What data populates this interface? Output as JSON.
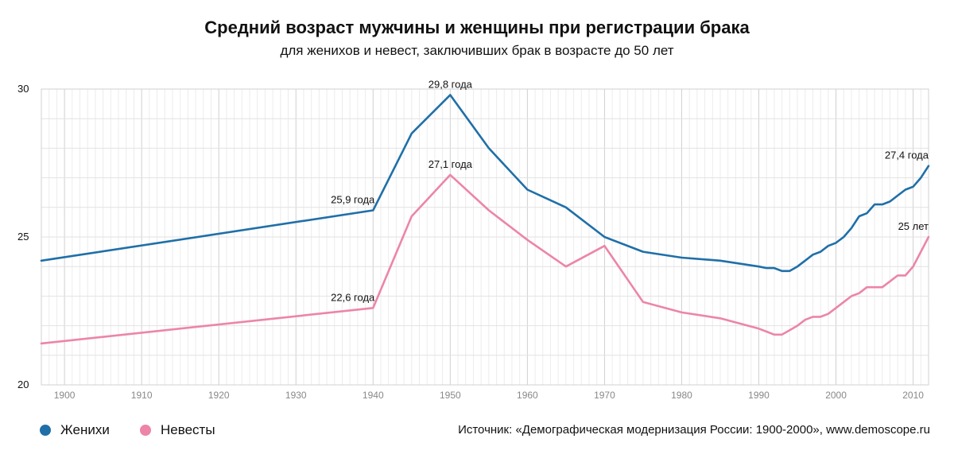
{
  "title": "Средний возраст мужчины и женщины при регистрации брака",
  "subtitle": "для женихов и невест, заключивших брак в возрасте до 50 лет",
  "source": "Источник: «Демографическая модернизация России: 1900-2000», www.demoscope.ru",
  "colors": {
    "grooms": "#1f6fa8",
    "brides": "#ec85a8",
    "grid": "#dcdcdc"
  },
  "chart_data": {
    "type": "line",
    "title": "Средний возраст мужчины и женщины при регистрации брака",
    "subtitle": "для женихов и невест, заключивших брак в возрасте до 50 лет",
    "xlabel": "",
    "ylabel": "",
    "xlim": [
      1897,
      2012
    ],
    "ylim": [
      20,
      30
    ],
    "x_ticks": [
      "1900",
      "1910",
      "1920",
      "1930",
      "1940",
      "1950",
      "1960",
      "1970",
      "1980",
      "1990",
      "2000",
      "2010"
    ],
    "y_ticks": [
      "20",
      "25",
      "30"
    ],
    "grid": true,
    "legend": "bottom-left",
    "series": [
      {
        "name": "Женихи",
        "color": "#1f6fa8",
        "x": [
          1897,
          1940,
          1945,
          1950,
          1955,
          1960,
          1965,
          1970,
          1975,
          1980,
          1985,
          1990,
          1991,
          1992,
          1993,
          1994,
          1995,
          1996,
          1997,
          1998,
          1999,
          2000,
          2001,
          2002,
          2003,
          2004,
          2005,
          2006,
          2007,
          2008,
          2009,
          2010,
          2011,
          2012
        ],
        "values": [
          24.2,
          25.9,
          28.5,
          29.8,
          28.0,
          26.6,
          26.0,
          25.0,
          24.5,
          24.3,
          24.2,
          24.0,
          23.95,
          23.95,
          23.85,
          23.85,
          24.0,
          24.2,
          24.4,
          24.5,
          24.7,
          24.8,
          25.0,
          25.3,
          25.7,
          25.8,
          26.1,
          26.1,
          26.2,
          26.4,
          26.6,
          26.7,
          27.0,
          27.4
        ]
      },
      {
        "name": "Невесты",
        "color": "#ec85a8",
        "x": [
          1897,
          1940,
          1945,
          1950,
          1955,
          1960,
          1965,
          1970,
          1975,
          1980,
          1985,
          1990,
          1991,
          1992,
          1993,
          1994,
          1995,
          1996,
          1997,
          1998,
          1999,
          2000,
          2001,
          2002,
          2003,
          2004,
          2005,
          2006,
          2007,
          2008,
          2009,
          2010,
          2011,
          2012
        ],
        "values": [
          21.4,
          22.6,
          25.7,
          27.1,
          25.9,
          24.9,
          24.0,
          24.7,
          22.8,
          22.45,
          22.25,
          21.9,
          21.8,
          21.7,
          21.7,
          21.85,
          22.0,
          22.2,
          22.3,
          22.3,
          22.4,
          22.6,
          22.8,
          23.0,
          23.1,
          23.3,
          23.3,
          23.3,
          23.5,
          23.7,
          23.7,
          24.0,
          24.5,
          25.0
        ]
      }
    ],
    "annotations": [
      {
        "series": 0,
        "x": 1950,
        "y": 29.8,
        "text": "29,8 года"
      },
      {
        "series": 0,
        "x": 1940,
        "y": 25.9,
        "text": "25,9 года"
      },
      {
        "series": 0,
        "x": 2012,
        "y": 27.4,
        "text": "27,4 года"
      },
      {
        "series": 1,
        "x": 1950,
        "y": 27.1,
        "text": "27,1 года"
      },
      {
        "series": 1,
        "x": 1940,
        "y": 22.6,
        "text": "22,6 года"
      },
      {
        "series": 1,
        "x": 2012,
        "y": 25.0,
        "text": "25 лет"
      }
    ]
  },
  "legend": [
    {
      "label": "Женихи",
      "color": "#1f6fa8"
    },
    {
      "label": "Невесты",
      "color": "#ec85a8"
    }
  ]
}
